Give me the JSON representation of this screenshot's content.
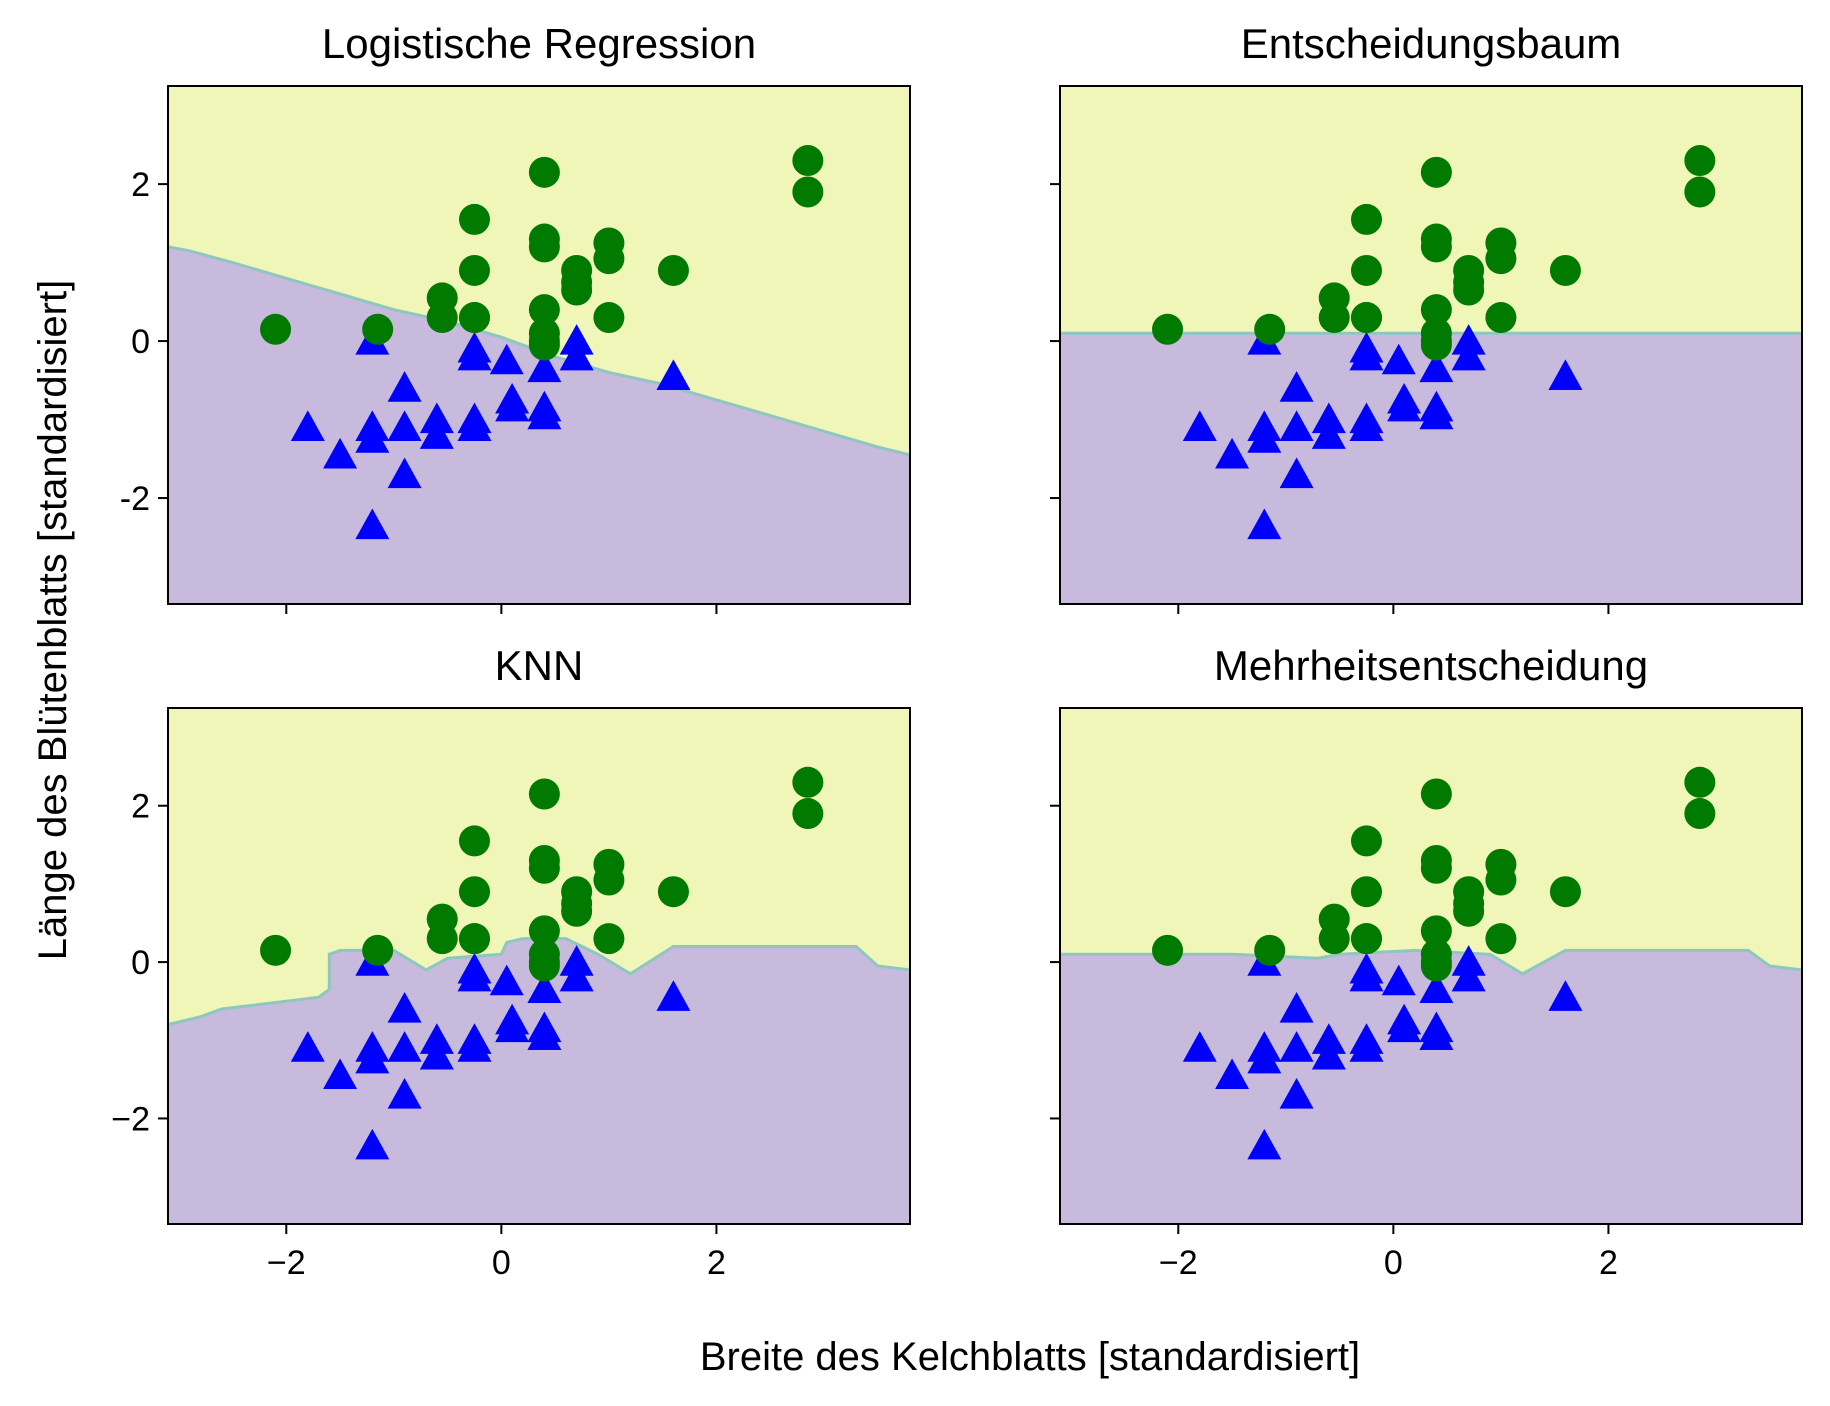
{
  "figure": {
    "xlabel": "Breite des Kelchblatts [standardisiert]",
    "ylabel": "Länge des Blütenblatts [standardisiert]"
  },
  "colors": {
    "region_class_0": "#c7badd",
    "region_class_1": "#f0f5b8",
    "boundary": "#8fc7c0",
    "class_0_marker": "#0000ff",
    "class_1_marker": "#007a00",
    "axes_frame": "#000000"
  },
  "chart_data": [
    {
      "type": "scatter",
      "title": "Logistische Regression",
      "xlim": [
        -3.1,
        3.8
      ],
      "ylim": [
        -3.35,
        3.25
      ],
      "xticks": [
        -2,
        0,
        2
      ],
      "yticks": [
        -2,
        0,
        2
      ],
      "xtick_labels": [
        "",
        "",
        ""
      ],
      "ytick_labels": [
        "-2",
        "0",
        "2"
      ],
      "decision_boundary": {
        "x": [
          -3.1,
          -2.9,
          -2.5,
          -2.0,
          -1.5,
          -1.0,
          -0.5,
          0.0,
          0.5,
          1.0,
          1.5,
          2.0,
          2.5,
          3.0,
          3.5,
          3.8
        ],
        "y": [
          1.2,
          1.15,
          1.0,
          0.8,
          0.6,
          0.4,
          0.25,
          0.05,
          -0.2,
          -0.4,
          -0.55,
          -0.75,
          -0.95,
          -1.15,
          -1.35,
          -1.45
        ]
      },
      "series_ref": "points"
    },
    {
      "type": "scatter",
      "title": "Entscheidungsbaum",
      "xlim": [
        -3.1,
        3.8
      ],
      "ylim": [
        -3.35,
        3.25
      ],
      "xticks": [
        -2,
        0,
        2
      ],
      "yticks": [
        -2,
        0,
        2
      ],
      "xtick_labels": [
        "",
        "",
        ""
      ],
      "ytick_labels": [
        "",
        "",
        ""
      ],
      "decision_boundary": {
        "x": [
          -3.1,
          3.8
        ],
        "y": [
          0.1,
          0.1
        ]
      },
      "series_ref": "points"
    },
    {
      "type": "scatter",
      "title": "KNN",
      "xlim": [
        -3.1,
        3.8
      ],
      "ylim": [
        -3.35,
        3.25
      ],
      "xticks": [
        -2,
        0,
        2
      ],
      "yticks": [
        -2,
        0,
        2
      ],
      "xtick_labels": [
        "−2",
        "0",
        "2"
      ],
      "ytick_labels": [
        "−2",
        "0",
        "2"
      ],
      "decision_boundary": {
        "x": [
          -3.1,
          -2.8,
          -2.6,
          -2.3,
          -2.0,
          -1.7,
          -1.6,
          -1.6,
          -1.5,
          -1.0,
          -0.7,
          -0.5,
          0.0,
          0.05,
          0.2,
          0.6,
          0.9,
          1.2,
          1.6,
          3.3,
          3.5,
          3.8
        ],
        "y": [
          -0.8,
          -0.7,
          -0.6,
          -0.55,
          -0.5,
          -0.45,
          -0.35,
          0.1,
          0.15,
          0.15,
          -0.1,
          0.05,
          0.1,
          0.25,
          0.3,
          0.3,
          0.1,
          -0.15,
          0.2,
          0.2,
          -0.05,
          -0.1
        ]
      },
      "series_ref": "points"
    },
    {
      "type": "scatter",
      "title": "Mehrheitsentscheidung",
      "xlim": [
        -3.1,
        3.8
      ],
      "ylim": [
        -3.35,
        3.25
      ],
      "xticks": [
        -2,
        0,
        2
      ],
      "yticks": [
        -2,
        0,
        2
      ],
      "xtick_labels": [
        "−2",
        "0",
        "2"
      ],
      "ytick_labels": [
        "",
        "",
        ""
      ],
      "decision_boundary": {
        "x": [
          -3.1,
          -1.5,
          -0.7,
          -0.5,
          0.2,
          0.9,
          1.2,
          1.6,
          3.3,
          3.5,
          3.8
        ],
        "y": [
          0.1,
          0.1,
          0.05,
          0.1,
          0.15,
          0.1,
          -0.15,
          0.15,
          0.15,
          -0.05,
          -0.1
        ]
      },
      "series_ref": "points"
    }
  ],
  "points": {
    "class_0": {
      "marker": "triangle",
      "x": [
        -1.8,
        -1.5,
        -1.2,
        -1.2,
        -1.2,
        -0.9,
        -0.9,
        -0.9,
        -0.6,
        -0.6,
        -0.25,
        -0.25,
        -0.25,
        -0.25,
        0.05,
        0.1,
        0.1,
        0.4,
        0.4,
        0.4,
        0.7,
        0.7,
        1.6,
        -1.2
      ],
      "y": [
        -1.1,
        -1.45,
        -2.35,
        -1.1,
        -1.25,
        -0.6,
        -1.1,
        -1.7,
        -1.0,
        -1.2,
        -0.1,
        -0.2,
        -1.0,
        -1.1,
        -0.25,
        -0.75,
        -0.85,
        -0.35,
        -0.85,
        -0.95,
        -0.2,
        0.0,
        -0.45,
        0.0
      ]
    },
    "class_1": {
      "marker": "circle",
      "x": [
        -2.1,
        -1.15,
        -0.55,
        -0.55,
        -0.25,
        -0.25,
        -0.25,
        -0.25,
        0.4,
        0.4,
        0.4,
        0.4,
        0.4,
        0.4,
        0.4,
        0.7,
        0.7,
        0.7,
        1.0,
        1.0,
        1.0,
        1.6,
        2.85,
        2.85
      ],
      "y": [
        0.15,
        0.15,
        0.55,
        0.3,
        1.55,
        0.9,
        0.3,
        0.3,
        2.15,
        1.3,
        1.2,
        0.4,
        0.1,
        0.0,
        -0.05,
        0.9,
        0.75,
        0.65,
        1.25,
        1.05,
        0.3,
        0.9,
        2.3,
        1.9
      ]
    }
  }
}
